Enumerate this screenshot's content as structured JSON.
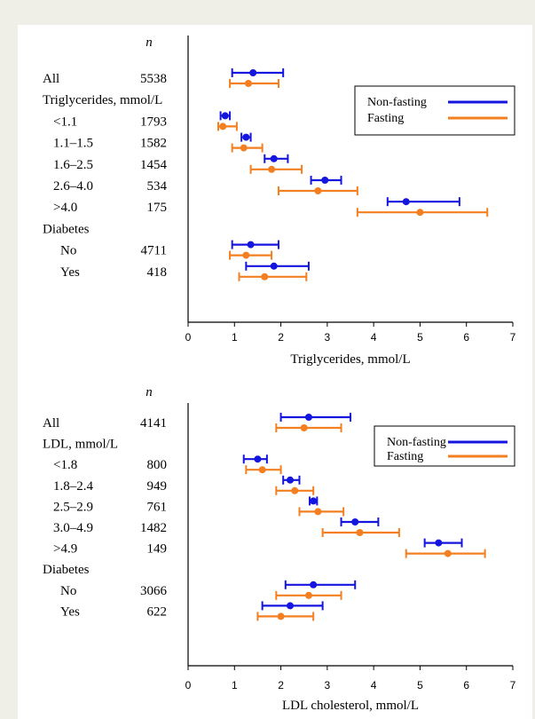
{
  "colors": {
    "nonfasting": "#1515e0",
    "fasting": "#f47f20"
  },
  "chart_data": [
    {
      "type": "errorbar",
      "n_header": "n",
      "xlabel": "Triglycerides, mmol/L",
      "xlim": [
        0,
        7
      ],
      "xticks": [
        "0",
        "1",
        "2",
        "3",
        "4",
        "5",
        "6",
        "7"
      ],
      "legend": {
        "position": "top-right",
        "entries": [
          "Non-fasting",
          "Fasting"
        ]
      },
      "rows": [
        {
          "label": "All",
          "n": "5538",
          "nonfasting": [
            1.4,
            0.95,
            2.05
          ],
          "fasting": [
            1.3,
            0.9,
            1.95
          ]
        },
        {
          "label": "Triglycerides, mmol/L",
          "n": "",
          "header": true
        },
        {
          "label": "<1.1",
          "n": "1793",
          "nonfasting": [
            0.8,
            0.7,
            0.9
          ],
          "fasting": [
            0.75,
            0.65,
            1.05
          ]
        },
        {
          "label": "1.1–1.5",
          "n": "1582",
          "nonfasting": [
            1.25,
            1.15,
            1.35
          ],
          "fasting": [
            1.2,
            0.95,
            1.6
          ]
        },
        {
          "label": "1.6–2.5",
          "n": "1454",
          "nonfasting": [
            1.85,
            1.65,
            2.15
          ],
          "fasting": [
            1.8,
            1.35,
            2.45
          ]
        },
        {
          "label": "2.6–4.0",
          "n": "534",
          "nonfasting": [
            2.95,
            2.65,
            3.3
          ],
          "fasting": [
            2.8,
            1.95,
            3.65
          ]
        },
        {
          "label": ">4.0",
          "n": "175",
          "nonfasting": [
            4.7,
            4.3,
            5.85
          ],
          "fasting": [
            5.0,
            3.65,
            6.45
          ]
        },
        {
          "label": "Diabetes",
          "n": "",
          "header": true
        },
        {
          "label": "No",
          "n": "4711",
          "nonfasting": [
            1.35,
            0.95,
            1.95
          ],
          "fasting": [
            1.25,
            0.9,
            1.8
          ]
        },
        {
          "label": "Yes",
          "n": "418",
          "nonfasting": [
            1.85,
            1.25,
            2.6
          ],
          "fasting": [
            1.65,
            1.1,
            2.55
          ]
        }
      ]
    },
    {
      "type": "errorbar",
      "n_header": "n",
      "xlabel": "LDL cholesterol, mmol/L",
      "xlim": [
        0,
        7
      ],
      "xticks": [
        "0",
        "1",
        "2",
        "3",
        "4",
        "5",
        "6",
        "7"
      ],
      "legend": {
        "position": "top-right",
        "entries": [
          "Non-fasting",
          "Fasting"
        ]
      },
      "rows": [
        {
          "label": "All",
          "n": "4141",
          "nonfasting": [
            2.6,
            2.0,
            3.5
          ],
          "fasting": [
            2.5,
            1.9,
            3.3
          ]
        },
        {
          "label": "LDL, mmol/L",
          "n": "",
          "header": true
        },
        {
          "label": "<1.8",
          "n": "800",
          "nonfasting": [
            1.5,
            1.2,
            1.7
          ],
          "fasting": [
            1.6,
            1.25,
            2.0
          ]
        },
        {
          "label": "1.8–2.4",
          "n": "949",
          "nonfasting": [
            2.2,
            2.05,
            2.4
          ],
          "fasting": [
            2.3,
            1.9,
            2.7
          ]
        },
        {
          "label": "2.5–2.9",
          "n": "761",
          "nonfasting": [
            2.7,
            2.62,
            2.78
          ],
          "fasting": [
            2.8,
            2.4,
            3.35
          ]
        },
        {
          "label": "3.0–4.9",
          "n": "1482",
          "nonfasting": [
            3.6,
            3.3,
            4.1
          ],
          "fasting": [
            3.7,
            2.9,
            4.55
          ]
        },
        {
          "label": ">4.9",
          "n": "149",
          "nonfasting": [
            5.4,
            5.1,
            5.9
          ],
          "fasting": [
            5.6,
            4.7,
            6.4
          ]
        },
        {
          "label": "Diabetes",
          "n": "",
          "header": true
        },
        {
          "label": "No",
          "n": "3066",
          "nonfasting": [
            2.7,
            2.1,
            3.6
          ],
          "fasting": [
            2.6,
            1.9,
            3.3
          ]
        },
        {
          "label": "Yes",
          "n": "622",
          "nonfasting": [
            2.2,
            1.6,
            2.9
          ],
          "fasting": [
            2.0,
            1.5,
            2.7
          ]
        }
      ]
    }
  ]
}
